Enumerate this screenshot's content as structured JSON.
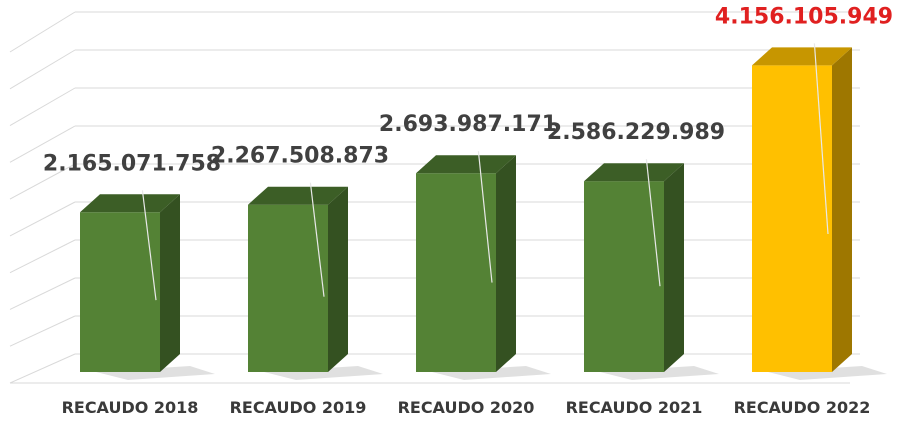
{
  "chart_data": {
    "type": "bar",
    "categories": [
      "RECAUDO 2018",
      "RECAUDO 2019",
      "RECAUDO 2020",
      "RECAUDO 2021",
      "RECAUDO 2022"
    ],
    "values": [
      2165071758,
      2267508873,
      2693987171,
      2586229989,
      4156105949
    ],
    "value_labels": [
      "2.165.071.758",
      "2.267.508.873",
      "2.693.987.171",
      "2.586.229.989",
      "4.156.105.949"
    ],
    "title": "",
    "xlabel": "",
    "ylabel": "",
    "ylim": [
      0,
      4500000000
    ],
    "grid": true,
    "style": "3d",
    "colors": {
      "default_bar": "#548235",
      "highlight_bar": "#FFC000",
      "default_label": "#404040",
      "highlight_label": "#E02020",
      "grid": "#d9d9d9"
    },
    "highlight_index": 4
  }
}
